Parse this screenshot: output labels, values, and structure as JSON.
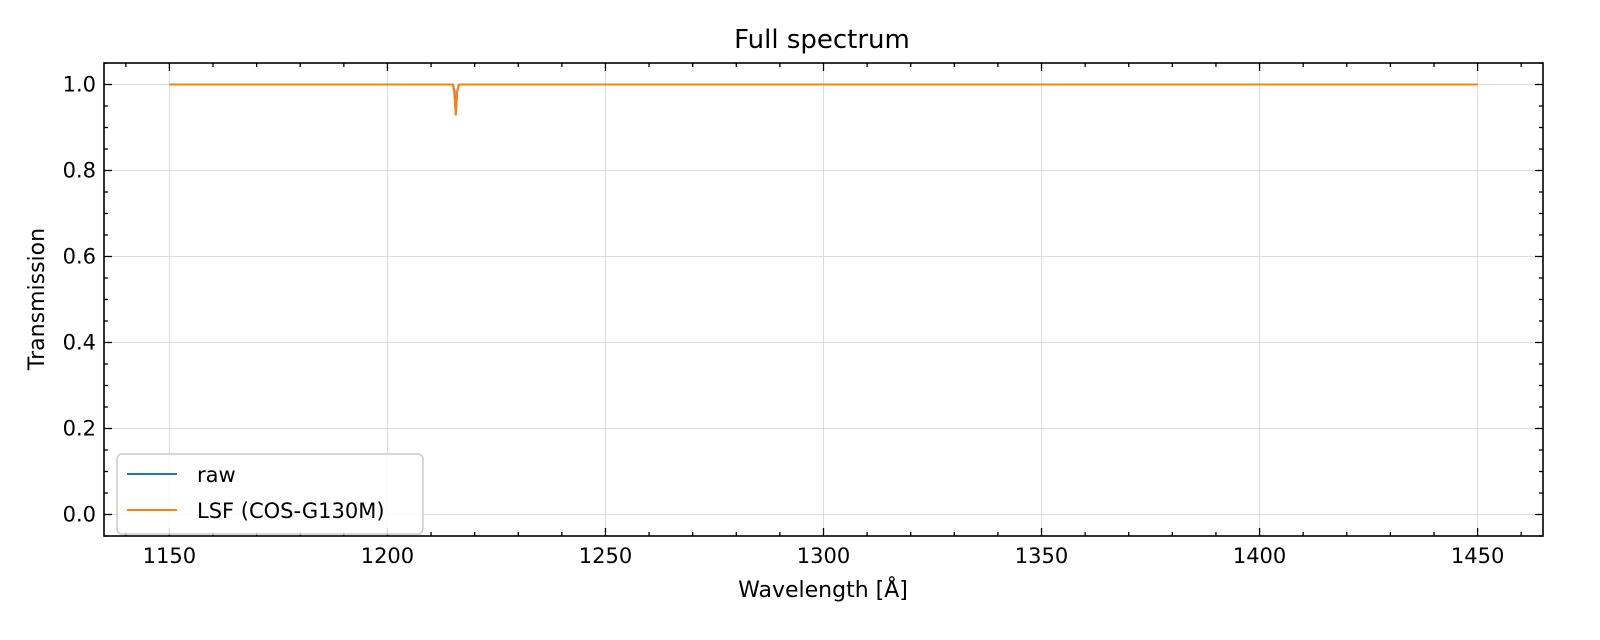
{
  "chart_data": {
    "type": "line",
    "title": "Full spectrum",
    "xlabel": "Wavelength [Å]",
    "ylabel": "Transmission",
    "xlim": [
      1135,
      1465
    ],
    "ylim": [
      -0.05,
      1.05
    ],
    "x_ticks": [
      1150,
      1200,
      1250,
      1300,
      1350,
      1400,
      1450
    ],
    "x_tick_labels": [
      "1150",
      "1200",
      "1250",
      "1300",
      "1350",
      "1400",
      "1450"
    ],
    "y_ticks": [
      0.0,
      0.2,
      0.4,
      0.6,
      0.8,
      1.0
    ],
    "y_tick_labels": [
      "0.0",
      "0.2",
      "0.4",
      "0.6",
      "0.8",
      "1.0"
    ],
    "x_minor_step": 10,
    "y_minor_step": 0.05,
    "grid": true,
    "legend_position": "lower-left",
    "series": [
      {
        "name": "raw",
        "color": "#1f77b4",
        "x": [
          1150,
          1215.0,
          1215.4,
          1215.67,
          1216.0,
          1216.4,
          1450
        ],
        "y": [
          1.0,
          1.0,
          0.985,
          0.93,
          0.985,
          1.0,
          1.0
        ]
      },
      {
        "name": "LSF (COS-G130M)",
        "color": "#ff7f0e",
        "x": [
          1150,
          1215.0,
          1215.3,
          1215.67,
          1216.0,
          1216.4,
          1450
        ],
        "y": [
          1.0,
          1.0,
          0.985,
          0.93,
          0.985,
          1.0,
          1.0
        ]
      }
    ]
  }
}
